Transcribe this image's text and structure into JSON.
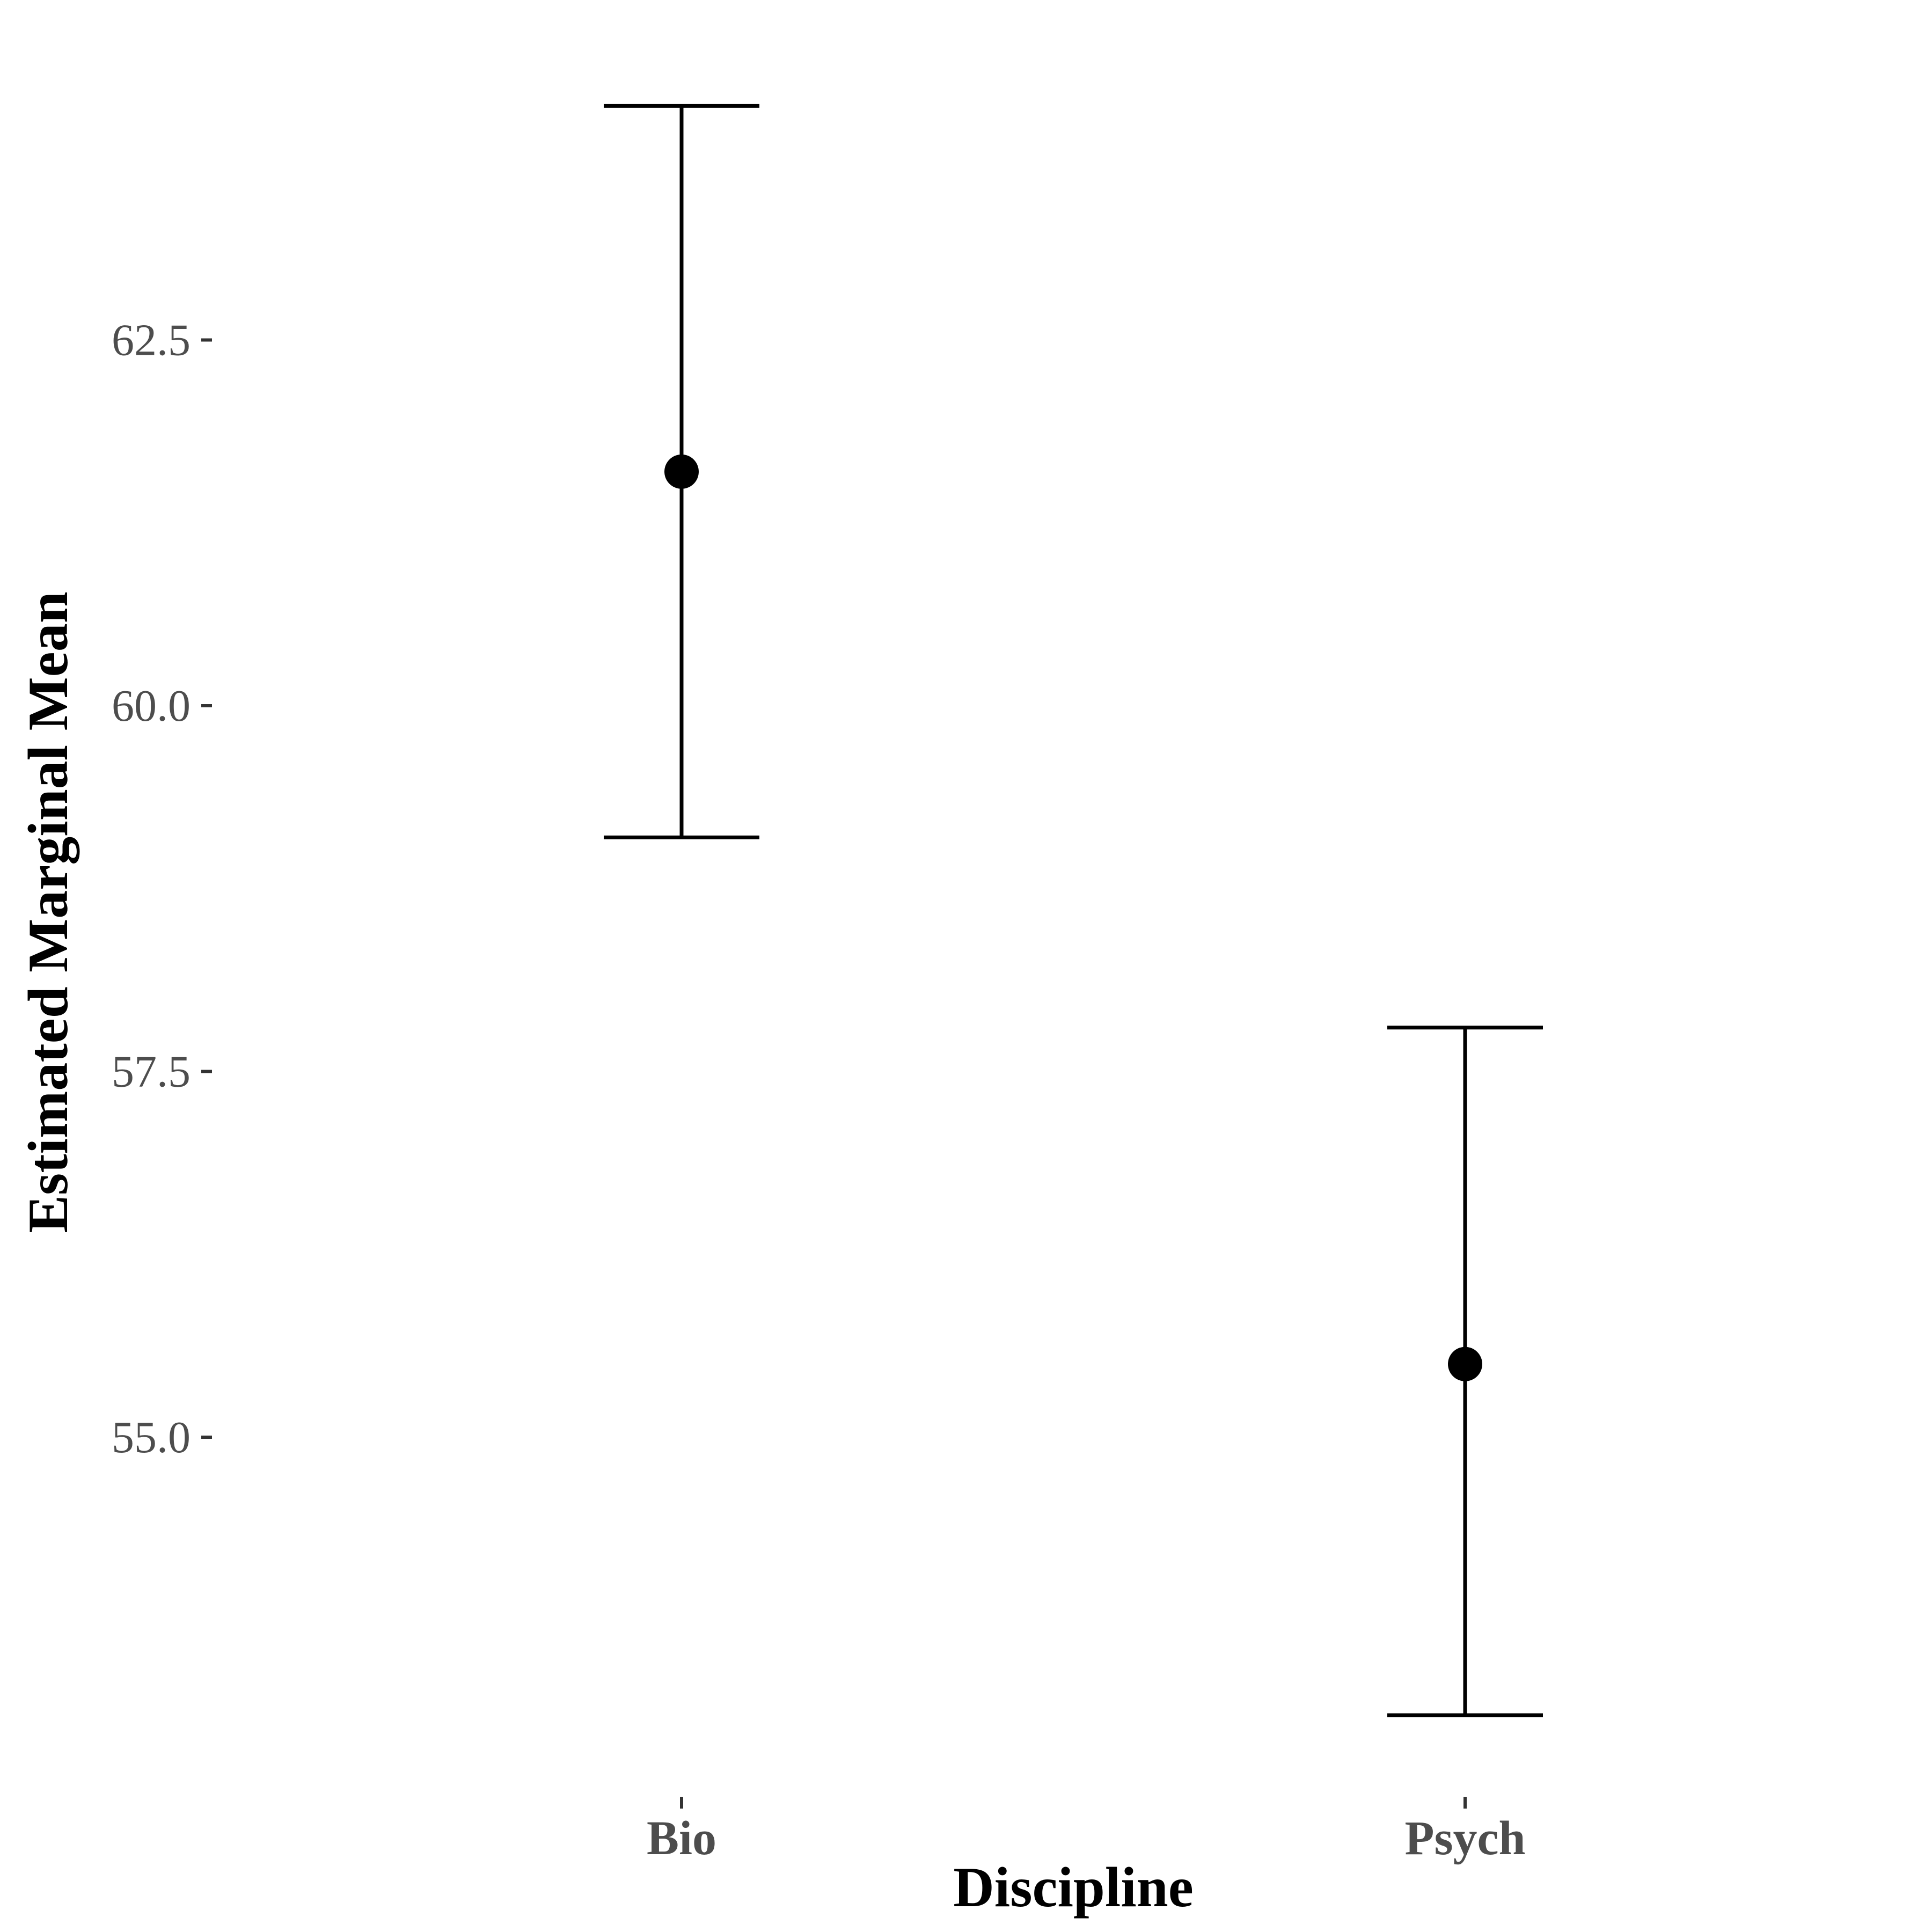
{
  "chart_data": {
    "type": "scatter",
    "title": "",
    "xlabel": "Discipline",
    "ylabel": "Estimated Marginal Mean",
    "categories": [
      "Bio",
      "Psych"
    ],
    "series": [
      {
        "points": [
          {
            "category": "Bio",
            "mean": 61.6,
            "lower": 59.1,
            "upper": 64.1
          },
          {
            "category": "Psych",
            "mean": 55.5,
            "lower": 53.1,
            "upper": 57.8
          }
        ]
      }
    ],
    "y_ticks": [
      {
        "value": 55.0,
        "label": "55.0"
      },
      {
        "value": 57.5,
        "label": "57.5"
      },
      {
        "value": 60.0,
        "label": "60.0"
      },
      {
        "value": 62.5,
        "label": "62.5"
      }
    ],
    "ylim": [
      52.8,
      64.4
    ],
    "grid": false,
    "legend": "none",
    "colors": {
      "marks": "#000000",
      "tick_labels": "#4d4d4d",
      "ticks": "#333333"
    }
  }
}
